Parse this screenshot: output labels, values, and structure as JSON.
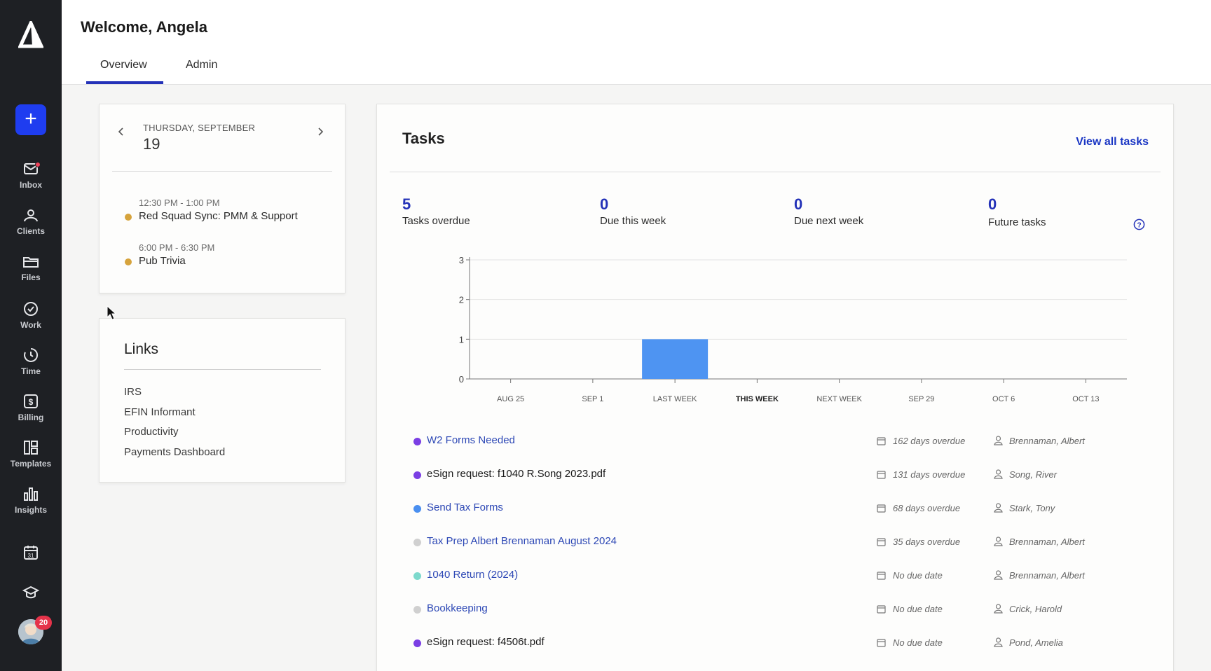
{
  "sidebar": {
    "new_label": "+",
    "items": [
      {
        "label": "Inbox",
        "icon": "mail-icon"
      },
      {
        "label": "Clients",
        "icon": "people-icon"
      },
      {
        "label": "Files",
        "icon": "folder-icon"
      },
      {
        "label": "Work",
        "icon": "check-circle-icon"
      },
      {
        "label": "Time",
        "icon": "clock-icon"
      },
      {
        "label": "Billing",
        "icon": "dollar-icon"
      },
      {
        "label": "Templates",
        "icon": "templates-icon"
      },
      {
        "label": "Insights",
        "icon": "bar-chart-icon"
      }
    ],
    "calendar_day_number": "31",
    "avatar_badge": "20"
  },
  "header": {
    "title": "Welcome, Angela",
    "tabs": [
      {
        "label": "Overview",
        "active": true
      },
      {
        "label": "Admin",
        "active": false
      }
    ]
  },
  "calendar": {
    "day_label": "THURSDAY, SEPTEMBER",
    "date": "19",
    "events": [
      {
        "time": "12:30 PM - 1:00 PM",
        "title": "Red Squad Sync: PMM & Support",
        "color": "#d6a33c"
      },
      {
        "time": "6:00 PM - 6:30 PM",
        "title": "Pub Trivia",
        "color": "#d6a33c"
      }
    ]
  },
  "links": {
    "title": "Links",
    "items": [
      "IRS",
      "EFIN Informant",
      "Productivity",
      "Payments Dashboard"
    ]
  },
  "tasks": {
    "title": "Tasks",
    "view_all": "View all tasks",
    "stats": [
      {
        "value": "5",
        "label": "Tasks overdue"
      },
      {
        "value": "0",
        "label": "Due this week"
      },
      {
        "value": "0",
        "label": "Due next week"
      },
      {
        "value": "0",
        "label": "Future tasks"
      }
    ],
    "rows": [
      {
        "name": "W2 Forms Needed",
        "due": "162 days overdue",
        "assignee": "Brennaman, Albert",
        "dot_color": "#7b3fe4",
        "style": "link"
      },
      {
        "name": "eSign request: f1040 R.Song 2023.pdf",
        "due": "131 days overdue",
        "assignee": "Song, River",
        "dot_color": "#7b3fe4",
        "style": "plain"
      },
      {
        "name": "Send Tax Forms",
        "due": "68 days overdue",
        "assignee": "Stark, Tony",
        "dot_color": "#4a8ff0",
        "style": "link"
      },
      {
        "name": "Tax Prep Albert Brennaman August 2024",
        "due": "35 days overdue",
        "assignee": "Brennaman, Albert",
        "dot_color": "#d0d0d0",
        "style": "link"
      },
      {
        "name": "1040 Return (2024)",
        "due": "No due date",
        "assignee": "Brennaman, Albert",
        "dot_color": "#7dd9cc",
        "style": "link"
      },
      {
        "name": "Bookkeeping",
        "due": "No due date",
        "assignee": "Crick, Harold",
        "dot_color": "#d0d0d0",
        "style": "link"
      },
      {
        "name": "eSign request: f4506t.pdf",
        "due": "No due date",
        "assignee": "Pond, Amelia",
        "dot_color": "#7b3fe4",
        "style": "plain"
      }
    ]
  },
  "chart_data": {
    "type": "bar",
    "categories": [
      "AUG 25",
      "SEP 1",
      "LAST WEEK",
      "THIS WEEK",
      "NEXT WEEK",
      "SEP 29",
      "OCT 6",
      "OCT 13"
    ],
    "values": [
      0,
      0,
      1,
      0,
      0,
      0,
      0,
      0
    ],
    "highlight_category": "THIS WEEK",
    "ylim": [
      0,
      3
    ],
    "yticks": [
      0,
      1,
      2,
      3
    ],
    "bar_color": "#4e94f2",
    "grid": true,
    "title": "",
    "xlabel": "",
    "ylabel": ""
  },
  "colors": {
    "accent": "#2432b8",
    "new_button": "#1f3df0",
    "sidebar": "#1e2024"
  }
}
